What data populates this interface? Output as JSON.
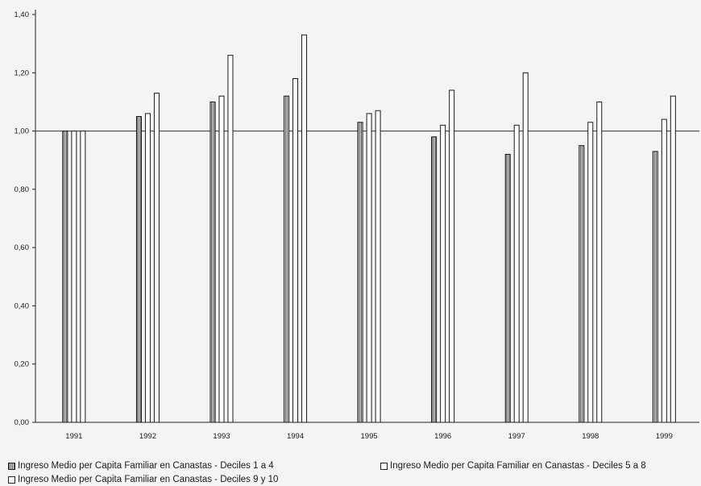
{
  "chart_data": {
    "type": "bar",
    "title": "",
    "xlabel": "",
    "ylabel": "",
    "categories": [
      "1991",
      "1992",
      "1993",
      "1994",
      "1995",
      "1996",
      "1997",
      "1998",
      "1999"
    ],
    "series": [
      {
        "name": "Ingreso Medio per Capita Familiar en Canastas - Deciles 1 a 4",
        "values": [
          1.0,
          1.05,
          1.1,
          1.12,
          1.03,
          0.98,
          0.92,
          0.95,
          0.93
        ]
      },
      {
        "name": "Ingreso Medio per Capita Familiar en Canastas - Deciles 5 a 8",
        "values": [
          1.0,
          1.06,
          1.12,
          1.18,
          1.06,
          1.02,
          1.02,
          1.03,
          1.04
        ]
      },
      {
        "name": "Ingreso Medio per Capita Familiar en Canastas - Deciles 9 y 10",
        "values": [
          1.0,
          1.13,
          1.26,
          1.33,
          1.07,
          1.14,
          1.2,
          1.1,
          1.12
        ]
      }
    ],
    "ylim": [
      0,
      1.4
    ],
    "yticks": [
      "0,00",
      "0,20",
      "0,40",
      "0,60",
      "0,80",
      "1,00",
      "1,20",
      "1,40"
    ],
    "grid": false,
    "legend_position": "bottom",
    "bar_styles": [
      "hatched",
      "white",
      "white"
    ]
  }
}
